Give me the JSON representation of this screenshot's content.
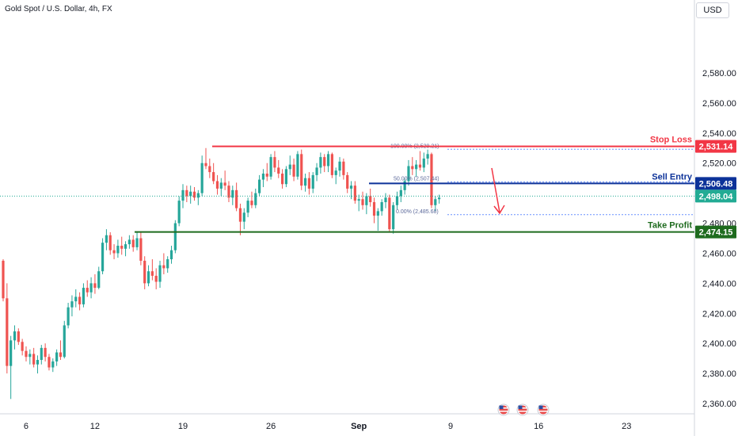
{
  "header": {
    "symbol_title": "Gold Spot / U.S. Dollar, 4h, FX",
    "currency_button": "USD"
  },
  "chart_data": {
    "type": "candlestick",
    "y_axis": {
      "ticks": [
        2360,
        2380,
        2400,
        2420,
        2440,
        2460,
        2480,
        2500,
        2520,
        2540,
        2560,
        2580
      ],
      "tick_labels": [
        "2,360.00",
        "2,380.00",
        "2,400.00",
        "2,420.00",
        "2,440.00",
        "2,460.00",
        "2,480.00",
        "2,500.00",
        "2,520.00",
        "2,540.00",
        "2,560.00",
        "2,580.00"
      ],
      "ylim": [
        2355,
        2600
      ]
    },
    "x_axis": {
      "tick_labels": [
        "6",
        "12",
        "19",
        "26",
        "Sep",
        "9",
        "16",
        "23"
      ],
      "tick_bar_index": [
        6,
        24,
        47,
        70,
        93,
        117,
        140,
        163
      ]
    },
    "candles": [
      [
        2455,
        2456,
        2428,
        2430
      ],
      [
        2430,
        2440,
        2380,
        2385
      ],
      [
        2385,
        2405,
        2363,
        2402
      ],
      [
        2402,
        2412,
        2396,
        2408
      ],
      [
        2408,
        2410,
        2399,
        2401
      ],
      [
        2401,
        2403,
        2392,
        2395
      ],
      [
        2395,
        2398,
        2388,
        2391
      ],
      [
        2391,
        2396,
        2386,
        2393
      ],
      [
        2393,
        2397,
        2384,
        2386
      ],
      [
        2386,
        2392,
        2380,
        2389
      ],
      [
        2389,
        2399,
        2386,
        2397
      ],
      [
        2397,
        2400,
        2388,
        2391
      ],
      [
        2391,
        2393,
        2382,
        2384
      ],
      [
        2384,
        2390,
        2381,
        2388
      ],
      [
        2388,
        2396,
        2385,
        2394
      ],
      [
        2394,
        2402,
        2389,
        2391
      ],
      [
        2391,
        2415,
        2390,
        2412
      ],
      [
        2412,
        2427,
        2410,
        2424
      ],
      [
        2424,
        2432,
        2418,
        2428
      ],
      [
        2428,
        2436,
        2424,
        2431
      ],
      [
        2431,
        2434,
        2422,
        2426
      ],
      [
        2426,
        2440,
        2424,
        2437
      ],
      [
        2437,
        2442,
        2431,
        2434
      ],
      [
        2434,
        2444,
        2430,
        2440
      ],
      [
        2440,
        2446,
        2433,
        2437
      ],
      [
        2437,
        2451,
        2436,
        2448
      ],
      [
        2448,
        2470,
        2446,
        2467
      ],
      [
        2467,
        2476,
        2462,
        2472
      ],
      [
        2472,
        2474,
        2459,
        2462
      ],
      [
        2462,
        2466,
        2456,
        2460
      ],
      [
        2460,
        2469,
        2457,
        2465
      ],
      [
        2465,
        2471,
        2459,
        2463
      ],
      [
        2463,
        2468,
        2458,
        2466
      ],
      [
        2466,
        2472,
        2463,
        2469
      ],
      [
        2469,
        2472,
        2461,
        2464
      ],
      [
        2464,
        2474,
        2462,
        2470
      ],
      [
        2470,
        2474,
        2452,
        2455
      ],
      [
        2455,
        2458,
        2436,
        2440
      ],
      [
        2440,
        2452,
        2438,
        2448
      ],
      [
        2448,
        2456,
        2442,
        2445
      ],
      [
        2445,
        2450,
        2436,
        2441
      ],
      [
        2441,
        2455,
        2437,
        2452
      ],
      [
        2452,
        2460,
        2446,
        2450
      ],
      [
        2450,
        2458,
        2447,
        2456
      ],
      [
        2456,
        2465,
        2453,
        2462
      ],
      [
        2462,
        2482,
        2460,
        2480
      ],
      [
        2480,
        2498,
        2478,
        2495
      ],
      [
        2495,
        2506,
        2490,
        2502
      ],
      [
        2502,
        2505,
        2494,
        2498
      ],
      [
        2498,
        2505,
        2493,
        2501
      ],
      [
        2501,
        2504,
        2495,
        2497
      ],
      [
        2497,
        2502,
        2492,
        2500
      ],
      [
        2500,
        2525,
        2498,
        2520
      ],
      [
        2520,
        2530,
        2516,
        2518
      ],
      [
        2518,
        2523,
        2510,
        2514
      ],
      [
        2514,
        2520,
        2506,
        2508
      ],
      [
        2508,
        2512,
        2499,
        2503
      ],
      [
        2503,
        2510,
        2498,
        2507
      ],
      [
        2507,
        2515,
        2502,
        2505
      ],
      [
        2505,
        2508,
        2494,
        2497
      ],
      [
        2497,
        2505,
        2492,
        2502
      ],
      [
        2502,
        2507,
        2488,
        2490
      ],
      [
        2490,
        2493,
        2472,
        2481
      ],
      [
        2481,
        2490,
        2476,
        2487
      ],
      [
        2487,
        2497,
        2484,
        2495
      ],
      [
        2495,
        2501,
        2490,
        2492
      ],
      [
        2492,
        2503,
        2490,
        2500
      ],
      [
        2500,
        2512,
        2498,
        2509
      ],
      [
        2509,
        2516,
        2504,
        2513
      ],
      [
        2513,
        2520,
        2508,
        2511
      ],
      [
        2511,
        2526,
        2509,
        2524
      ],
      [
        2524,
        2528,
        2514,
        2517
      ],
      [
        2517,
        2522,
        2510,
        2513
      ],
      [
        2513,
        2516,
        2503,
        2506
      ],
      [
        2506,
        2518,
        2504,
        2516
      ],
      [
        2516,
        2525,
        2512,
        2519
      ],
      [
        2519,
        2523,
        2508,
        2511
      ],
      [
        2511,
        2528,
        2509,
        2526
      ],
      [
        2526,
        2529,
        2502,
        2505
      ],
      [
        2505,
        2513,
        2501,
        2510
      ],
      [
        2510,
        2514,
        2499,
        2503
      ],
      [
        2503,
        2514,
        2500,
        2512
      ],
      [
        2512,
        2520,
        2508,
        2517
      ],
      [
        2517,
        2527,
        2513,
        2524
      ],
      [
        2524,
        2526,
        2514,
        2518
      ],
      [
        2518,
        2528,
        2514,
        2526
      ],
      [
        2526,
        2527,
        2510,
        2512
      ],
      [
        2512,
        2517,
        2506,
        2515
      ],
      [
        2515,
        2524,
        2511,
        2521
      ],
      [
        2521,
        2523,
        2509,
        2512
      ],
      [
        2512,
        2514,
        2500,
        2503
      ],
      [
        2503,
        2508,
        2496,
        2505
      ],
      [
        2505,
        2508,
        2493,
        2495
      ],
      [
        2495,
        2499,
        2488,
        2496
      ],
      [
        2496,
        2501,
        2489,
        2492
      ],
      [
        2492,
        2500,
        2486,
        2498
      ],
      [
        2498,
        2503,
        2491,
        2494
      ],
      [
        2494,
        2497,
        2480,
        2485
      ],
      [
        2485,
        2490,
        2475,
        2488
      ],
      [
        2488,
        2496,
        2485,
        2494
      ],
      [
        2494,
        2500,
        2490,
        2497
      ],
      [
        2497,
        2499,
        2474,
        2476
      ],
      [
        2476,
        2494,
        2473,
        2492
      ],
      [
        2492,
        2501,
        2489,
        2498
      ],
      [
        2498,
        2505,
        2494,
        2502
      ],
      [
        2502,
        2510,
        2499,
        2508
      ],
      [
        2508,
        2522,
        2505,
        2518
      ],
      [
        2518,
        2524,
        2512,
        2516
      ],
      [
        2516,
        2522,
        2511,
        2519
      ],
      [
        2519,
        2528,
        2515,
        2517
      ],
      [
        2517,
        2527,
        2514,
        2523
      ],
      [
        2523,
        2529,
        2519,
        2526
      ],
      [
        2526,
        2527,
        2490,
        2492
      ],
      [
        2492,
        2498,
        2488,
        2496
      ],
      [
        2496,
        2499,
        2493,
        2497
      ]
    ],
    "levels": [
      {
        "label": "Stop Loss",
        "value": 2531.14,
        "value_label": "2,531.14",
        "color": "#f23645"
      },
      {
        "label": "Sell Entry",
        "value": 2506.48,
        "value_label": "2,506.48",
        "color": "#0c3299"
      },
      {
        "label": "Take Profit",
        "value": 2474.15,
        "value_label": "2,474.15",
        "color": "#1e6b1e"
      }
    ],
    "current_price": {
      "value": 2498.04,
      "value_label": "2,498.04",
      "color": "#22ab94"
    },
    "fib_labels": {
      "top": "100.00% (2,529.21)",
      "mid": "50.00% (2,507.44)",
      "bottom": "0.00% (2,485.68)"
    },
    "fib_levels": [
      2529.21,
      2507.44,
      2485.68
    ],
    "colors": {
      "up": "#26a69a",
      "down": "#ef5350",
      "arrow": "#f23645"
    },
    "event_icons": [
      "us-flag-icon",
      "us-flag-icon",
      "us-flag-icon"
    ]
  }
}
